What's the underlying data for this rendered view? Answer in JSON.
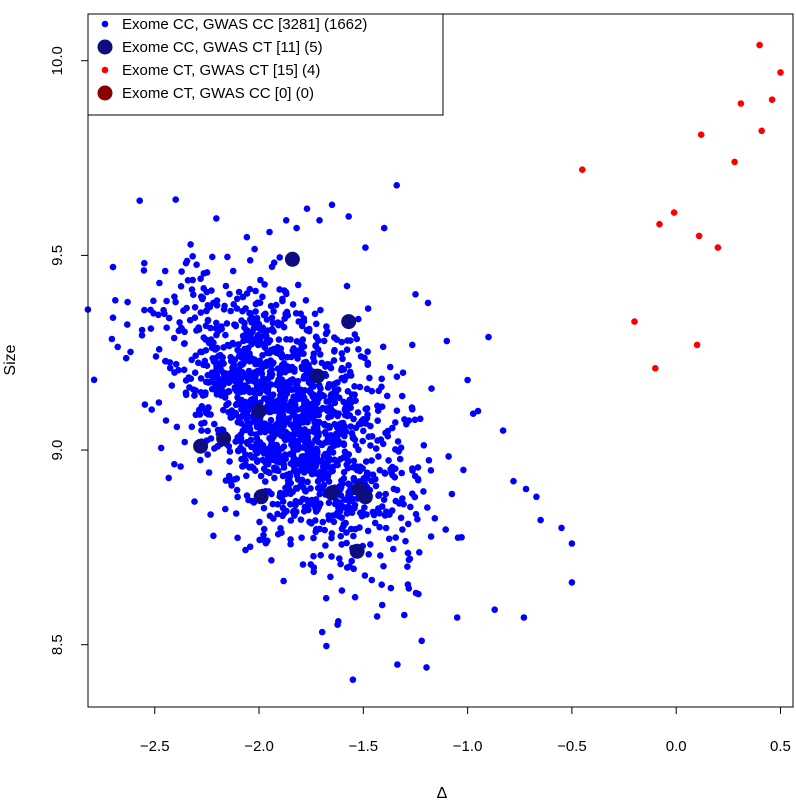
{
  "chart_data": {
    "type": "scatter",
    "title": "",
    "xlabel": "Δ",
    "ylabel": "Size",
    "xlim": [
      -2.82,
      0.56
    ],
    "ylim": [
      8.34,
      10.12
    ],
    "x_ticks": [
      -2.5,
      -2.0,
      -1.5,
      -1.0,
      -0.5,
      0.0,
      0.5
    ],
    "x_tick_labels": [
      "−2.5",
      "−2.0",
      "−1.5",
      "−1.0",
      "−0.5",
      "0.0",
      "0.5"
    ],
    "y_ticks": [
      8.5,
      9.0,
      9.5,
      10.0
    ],
    "y_tick_labels": [
      "8.5",
      "9.0",
      "9.5",
      "10.0"
    ],
    "grid": false,
    "legend_position": "top-left",
    "series": [
      {
        "name": "Exome CC, GWAS CC [3281] (1662)",
        "color": "#0000ff",
        "marker": "small-dot",
        "cluster": {
          "count": 1650,
          "center_x": -1.85,
          "center_y": 9.08,
          "sd_x": 0.28,
          "sd_y": 0.17,
          "correlation": -0.5
        },
        "x": [
          -2.7,
          -2.7,
          -2.63,
          -2.55,
          -2.52,
          -2.45,
          -2.4,
          -2.35,
          -2.28,
          -1.95,
          -1.87,
          -1.82,
          -1.77,
          -1.71,
          -1.65,
          -1.57,
          -1.49,
          -1.4,
          -1.34,
          -1.25,
          -1.1,
          -1.0,
          -0.95,
          -0.9,
          -0.83,
          -0.78,
          -0.72,
          -0.67,
          -0.55,
          -0.5,
          -0.5,
          -0.65,
          -0.73,
          -0.87,
          -1.05,
          -1.22,
          -1.55,
          -1.62
        ],
        "y": [
          9.47,
          9.34,
          9.38,
          9.48,
          9.36,
          9.46,
          9.38,
          9.48,
          9.44,
          9.56,
          9.59,
          9.57,
          9.62,
          9.59,
          9.63,
          9.6,
          9.52,
          9.57,
          9.68,
          9.4,
          9.28,
          9.18,
          9.1,
          9.29,
          9.05,
          8.92,
          8.9,
          8.88,
          8.8,
          8.66,
          8.76,
          8.82,
          8.57,
          8.59,
          8.57,
          8.51,
          8.41,
          8.56
        ]
      },
      {
        "name": "Exome CC, GWAS CT [11] (5)",
        "color": "#0d0d80",
        "marker": "large-dot",
        "x": [
          -1.84,
          -1.57,
          -1.72,
          -2.0,
          -2.28,
          -2.17,
          -1.99,
          -1.65,
          -1.52,
          -1.49,
          -1.53
        ],
        "y": [
          9.49,
          9.33,
          9.19,
          9.1,
          9.01,
          9.03,
          8.88,
          8.89,
          8.9,
          8.88,
          8.74
        ]
      },
      {
        "name": "Exome CT, GWAS CT [15] (4)",
        "color": "#ff0000",
        "marker": "small-dot",
        "x": [
          0.4,
          0.5,
          0.31,
          0.46,
          0.12,
          0.41,
          0.28,
          -0.45,
          -0.01,
          -0.08,
          0.11,
          0.2,
          -0.2,
          0.1,
          -0.1
        ],
        "y": [
          10.04,
          9.97,
          9.89,
          9.9,
          9.81,
          9.82,
          9.74,
          9.72,
          9.61,
          9.58,
          9.55,
          9.52,
          9.33,
          9.27,
          9.21
        ]
      },
      {
        "name": "Exome CT, GWAS CC [0] (0)",
        "color": "#8b0000",
        "marker": "large-dot",
        "x": [],
        "y": []
      }
    ]
  }
}
